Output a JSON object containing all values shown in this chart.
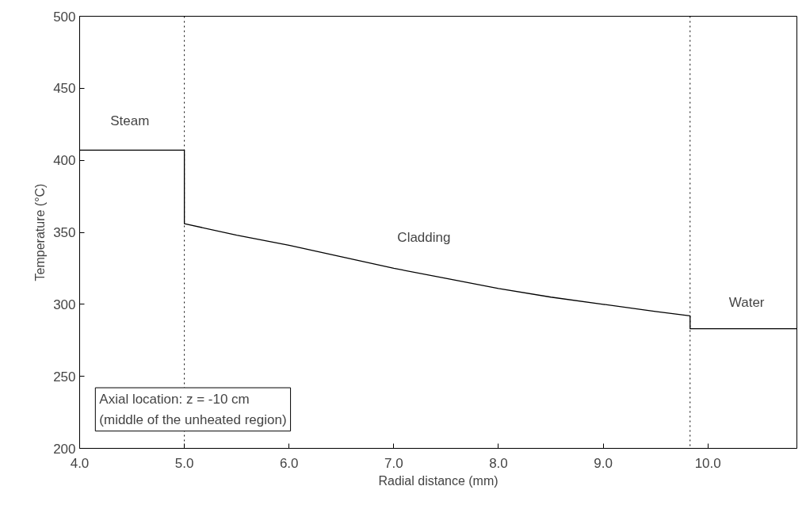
{
  "chart_data": {
    "type": "line",
    "xlabel": "Radial distance (mm)",
    "ylabel": "Temperature (°C)",
    "x": [
      4.0,
      5.0,
      5.0,
      5.0,
      5.5,
      6.0,
      6.5,
      7.0,
      7.5,
      8.0,
      8.5,
      9.0,
      9.5,
      9.83,
      9.83,
      10.85
    ],
    "series": [
      {
        "color": "#000000",
        "values": [
          407,
          407,
          381,
          356,
          348,
          341,
          333,
          325,
          318,
          311,
          305,
          300,
          295,
          292,
          283,
          283
        ]
      }
    ],
    "xlim": [
      4.0,
      10.85
    ],
    "ylim": [
      200,
      500
    ],
    "xticks": [
      {
        "value": 4,
        "label": "4.0"
      },
      {
        "value": 5,
        "label": "5.0"
      },
      {
        "value": 6,
        "label": "6.0"
      },
      {
        "value": 7,
        "label": "7.0"
      },
      {
        "value": 8,
        "label": "8.0"
      },
      {
        "value": 9,
        "label": "9.0"
      },
      {
        "value": 10,
        "label": "10.0"
      }
    ],
    "yticks": [
      200,
      250,
      300,
      350,
      400,
      450,
      500
    ],
    "ref_lines": [
      {
        "axis": "x",
        "value": 5.0,
        "line_style": "dotted",
        "color": "#000000"
      },
      {
        "axis": "x",
        "value": 9.83,
        "line_style": "dotted",
        "color": "#000000"
      }
    ],
    "annotations": [
      "Steam",
      "Cladding",
      "Water",
      "Axial location: z = -10 cm\n(middle of the unheated region)"
    ],
    "grid": false,
    "line_style": "solid",
    "marker": "none"
  }
}
